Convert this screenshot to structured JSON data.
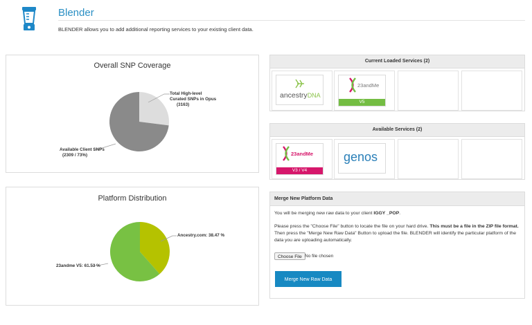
{
  "header": {
    "app_title": "Blender",
    "description": "BLENDER allows you to add additional reporting services to your existing client data.",
    "icon": "blender-icon"
  },
  "snp_chart": {
    "chart_data": {
      "type": "pie",
      "title": "Overall SNP Coverage",
      "slices": [
        {
          "label": "Total High-level Curated SNPs in Opus",
          "sublabel": "(3163)",
          "value": 27,
          "color": "#dddddd"
        },
        {
          "label": "Available Client SNPs",
          "sublabel": "(2309 / 73%)",
          "value": 73,
          "color": "#8a8a8a"
        }
      ],
      "label_a_line1": "Total High-level",
      "label_a_line2": "Curated SNPs in Opus",
      "label_a_line3": "(3163)",
      "label_b_line1": "Available Client SNPs",
      "label_b_line2": "(2309 / 73%)"
    }
  },
  "platform_chart": {
    "chart_data": {
      "type": "pie",
      "title": "Platform Distribution",
      "slices": [
        {
          "label": "Ancestry.com: 38.47 %",
          "value": 38.47,
          "color": "#b5c200"
        },
        {
          "label": "23andme V5: 61.53 %",
          "value": 61.53,
          "color": "#78c143"
        }
      ]
    }
  },
  "current_services": {
    "title": "Current Loaded Services (2)",
    "ancestry_logo": "ancestry",
    "ancestry_logo_suffix": "DNA",
    "twentythree_logo": "23andMe",
    "twentythree_badge": "V5"
  },
  "available_services": {
    "title": "Available Services (2)",
    "twentythree_logo": "23andMe",
    "twentythree_badge": "V3 / V4",
    "genos_logo": "genos"
  },
  "merge": {
    "title": "Merge New Platform Data",
    "line1_prefix": "You will be merging new raw data to your client ",
    "client_name": "IGGY _POP",
    "line1_suffix": ".",
    "line2_prefix": "Please press the \"Choose File\" button to locate the file on your hard drive. ",
    "line2_bold": "This must be a file in the ZIP file format.",
    "line2_suffix": " Then press the \"Merge New Raw Data\" Button to upload the file. BLENDER will identify the particular platform of the data you are uploading automatically.",
    "choose_file_label": "Choose File",
    "file_status": "No file chosen",
    "merge_button_label": "Merge New Raw Data"
  },
  "colors": {
    "accent": "#1789c2",
    "title_blue": "#2a8fc4",
    "v5_badge": "#74bd43",
    "v3v4_badge": "#d6176b"
  }
}
